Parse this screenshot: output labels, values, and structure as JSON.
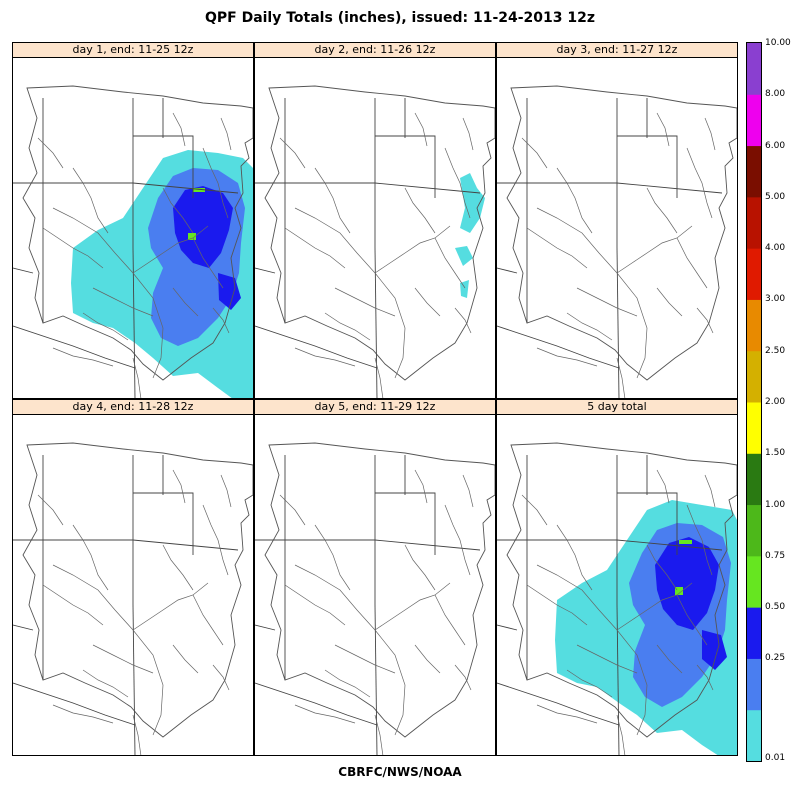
{
  "title": "QPF Daily Totals (inches),  issued: 11-24-2013 12z",
  "footer": "CBRFC/NWS/NOAA",
  "panels": [
    {
      "label": "day 1, end: 11-25 12z",
      "precip": "heavy"
    },
    {
      "label": "day 2, end: 11-26 12z",
      "precip": "trace"
    },
    {
      "label": "day 3, end: 11-27 12z",
      "precip": "none"
    },
    {
      "label": "day 4, end: 11-28 12z",
      "precip": "none"
    },
    {
      "label": "day 5, end: 11-29 12z",
      "precip": "none"
    },
    {
      "label": "5 day total",
      "precip": "heavy"
    }
  ],
  "legend": {
    "bins": [
      {
        "value": 0.01,
        "color": "#55dde0"
      },
      {
        "value": 0.25,
        "color": "#4a7ef0"
      },
      {
        "value": 0.5,
        "color": "#1a1aee"
      },
      {
        "value": 0.75,
        "color": "#66e620"
      },
      {
        "value": 1.0,
        "color": "#4db81a"
      },
      {
        "value": 1.5,
        "color": "#2a7a12"
      },
      {
        "value": 2.0,
        "color": "#ffff00"
      },
      {
        "value": 2.5,
        "color": "#d4b000"
      },
      {
        "value": 3.0,
        "color": "#e88a00"
      },
      {
        "value": 4.0,
        "color": "#e01a00"
      },
      {
        "value": 5.0,
        "color": "#b81200"
      },
      {
        "value": 6.0,
        "color": "#7a0e00"
      },
      {
        "value": 8.0,
        "color": "#ee00ee"
      },
      {
        "value": 10.0,
        "color": "#8a3fd0"
      }
    ],
    "tick_labels": [
      "0.01",
      "0.25",
      "0.50",
      "0.75",
      "1.00",
      "1.50",
      "2.00",
      "2.50",
      "3.00",
      "4.00",
      "5.00",
      "6.00",
      "8.00",
      "10.00"
    ]
  }
}
